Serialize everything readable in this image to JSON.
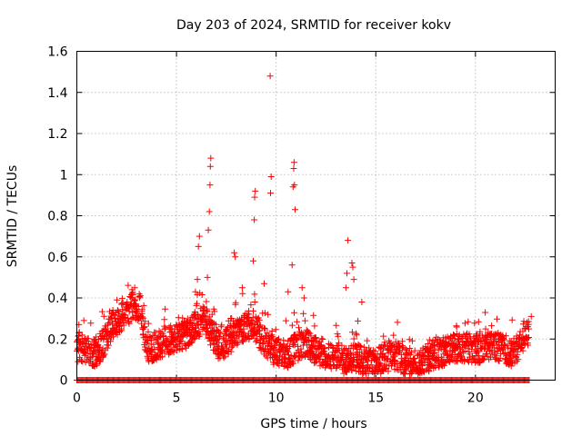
{
  "chart_data": {
    "type": "scatter",
    "title": "Day 203 of 2024, SRMTID for receiver kokv",
    "xlabel": "GPS time / hours",
    "ylabel": "SRMTID / TECUs",
    "xlim": [
      0,
      24
    ],
    "ylim": [
      0,
      1.6
    ],
    "x_ticks": [
      0,
      5,
      10,
      15,
      20
    ],
    "x_tick_labels": [
      "0",
      "5",
      "10",
      "15",
      "20"
    ],
    "y_ticks": [
      0,
      0.2,
      0.4,
      0.6,
      0.8,
      1.0,
      1.2,
      1.4,
      1.6
    ],
    "y_tick_labels": [
      "0",
      "0.2",
      "0.4",
      "0.6",
      "0.8",
      "1",
      "1.2",
      "1.4",
      "1.6"
    ],
    "grid": true,
    "marker": "plus",
    "color": "#ff0000",
    "series": [
      {
        "name": "SRMTID",
        "trend": [
          [
            0.0,
            0.16
          ],
          [
            0.5,
            0.15
          ],
          [
            1.0,
            0.13
          ],
          [
            1.3,
            0.18
          ],
          [
            1.8,
            0.27
          ],
          [
            2.3,
            0.31
          ],
          [
            2.8,
            0.36
          ],
          [
            3.2,
            0.36
          ],
          [
            3.5,
            0.15
          ],
          [
            4.0,
            0.17
          ],
          [
            4.5,
            0.19
          ],
          [
            5.0,
            0.2
          ],
          [
            5.5,
            0.22
          ],
          [
            6.0,
            0.27
          ],
          [
            6.4,
            0.3
          ],
          [
            6.8,
            0.22
          ],
          [
            7.2,
            0.16
          ],
          [
            7.6,
            0.19
          ],
          [
            8.0,
            0.24
          ],
          [
            8.5,
            0.26
          ],
          [
            8.9,
            0.27
          ],
          [
            9.2,
            0.22
          ],
          [
            9.6,
            0.16
          ],
          [
            10.0,
            0.14
          ],
          [
            10.5,
            0.12
          ],
          [
            11.0,
            0.16
          ],
          [
            11.5,
            0.18
          ],
          [
            12.0,
            0.14
          ],
          [
            12.5,
            0.13
          ],
          [
            13.0,
            0.12
          ],
          [
            13.5,
            0.09
          ],
          [
            14.0,
            0.11
          ],
          [
            14.5,
            0.09
          ],
          [
            15.0,
            0.08
          ],
          [
            15.5,
            0.11
          ],
          [
            16.0,
            0.12
          ],
          [
            16.5,
            0.09
          ],
          [
            17.0,
            0.05
          ],
          [
            17.5,
            0.1
          ],
          [
            18.0,
            0.13
          ],
          [
            18.5,
            0.14
          ],
          [
            19.0,
            0.16
          ],
          [
            19.5,
            0.16
          ],
          [
            20.0,
            0.15
          ],
          [
            20.5,
            0.16
          ],
          [
            21.0,
            0.17
          ],
          [
            21.5,
            0.15
          ],
          [
            22.0,
            0.13
          ],
          [
            22.3,
            0.2
          ],
          [
            22.7,
            0.24
          ]
        ],
        "spikes": [
          [
            0.35,
            0.29
          ],
          [
            2.9,
            0.45
          ],
          [
            5.95,
            0.43
          ],
          [
            6.05,
            0.49
          ],
          [
            6.1,
            0.65
          ],
          [
            6.15,
            0.7
          ],
          [
            6.6,
            0.73
          ],
          [
            6.65,
            0.82
          ],
          [
            6.68,
            0.95
          ],
          [
            6.7,
            1.04
          ],
          [
            6.72,
            1.08
          ],
          [
            6.55,
            0.5
          ],
          [
            7.9,
            0.62
          ],
          [
            7.95,
            0.6
          ],
          [
            8.85,
            0.58
          ],
          [
            8.9,
            0.78
          ],
          [
            8.92,
            0.89
          ],
          [
            8.95,
            0.92
          ],
          [
            8.3,
            0.45
          ],
          [
            9.4,
            0.47
          ],
          [
            9.7,
            1.48
          ],
          [
            9.72,
            0.91
          ],
          [
            9.75,
            0.99
          ],
          [
            10.8,
            0.56
          ],
          [
            10.85,
            0.94
          ],
          [
            10.88,
            1.03
          ],
          [
            10.9,
            1.06
          ],
          [
            10.92,
            0.95
          ],
          [
            10.95,
            0.83
          ],
          [
            10.6,
            0.43
          ],
          [
            11.3,
            0.45
          ],
          [
            11.4,
            0.4
          ],
          [
            13.6,
            0.68
          ],
          [
            13.55,
            0.52
          ],
          [
            13.8,
            0.57
          ],
          [
            13.85,
            0.55
          ],
          [
            13.9,
            0.49
          ],
          [
            13.5,
            0.45
          ],
          [
            14.3,
            0.38
          ],
          [
            22.8,
            0.31
          ]
        ],
        "zero_row": {
          "y": 0,
          "x_range": [
            0.0,
            22.75
          ],
          "step": 0.05
        }
      }
    ]
  }
}
